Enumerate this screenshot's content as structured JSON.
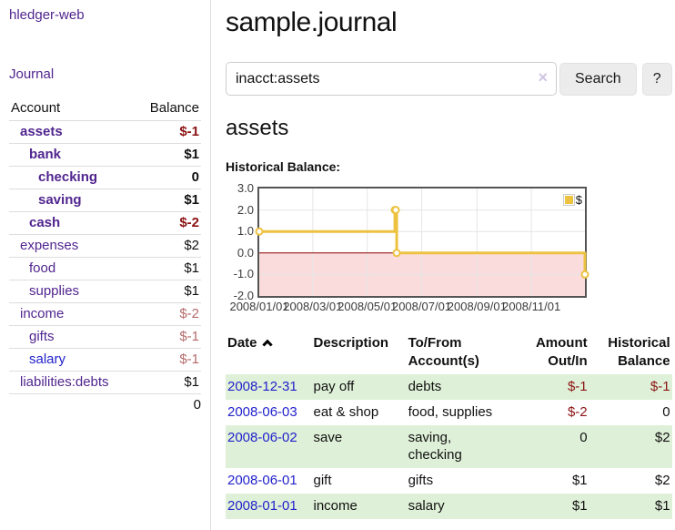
{
  "app": {
    "brand": "hledger-web"
  },
  "theme": {
    "link_purple": "#51258f",
    "link_blue": "#2222cc",
    "negative_strong": "#8b1212",
    "negative_faded": "#b46a6a",
    "row_stripe_green": "#dff0d8",
    "series_gold": "#edc240"
  },
  "sidebar": {
    "journal_link": "Journal",
    "accounts_table": {
      "columns": [
        "Account",
        "Balance"
      ],
      "rows": [
        {
          "name": "assets",
          "balance": "$-1",
          "depth": 1,
          "bold": true,
          "negative": "strong"
        },
        {
          "name": "bank",
          "balance": "$1",
          "depth": 2,
          "bold": true,
          "negative": "none"
        },
        {
          "name": "checking",
          "balance": "0",
          "depth": 3,
          "bold": true,
          "negative": "none"
        },
        {
          "name": "saving",
          "balance": "$1",
          "depth": 3,
          "bold": true,
          "negative": "none"
        },
        {
          "name": "cash",
          "balance": "$-2",
          "depth": 2,
          "bold": true,
          "negative": "strong"
        },
        {
          "name": "expenses",
          "balance": "$2",
          "depth": 1,
          "bold": false,
          "negative": "none"
        },
        {
          "name": "food",
          "balance": "$1",
          "depth": 2,
          "bold": false,
          "negative": "none"
        },
        {
          "name": "supplies",
          "balance": "$1",
          "depth": 2,
          "bold": false,
          "negative": "none"
        },
        {
          "name": "income",
          "balance": "$-2",
          "depth": 1,
          "bold": false,
          "negative": "faded"
        },
        {
          "name": "gifts",
          "balance": "$-1",
          "depth": 2,
          "bold": false,
          "negative": "faded"
        },
        {
          "name": "salary",
          "balance": "$-1",
          "depth": 2,
          "bold": false,
          "negative": "faded",
          "link_color": "blue"
        },
        {
          "name": "liabilities:debts",
          "balance": "$1",
          "depth": 1,
          "bold": false,
          "negative": "none"
        }
      ],
      "total": "0"
    }
  },
  "header": {
    "title": "sample.journal"
  },
  "search": {
    "query": "inacct:assets",
    "clear_icon": "×",
    "button_label": "Search",
    "help_label": "?"
  },
  "account_page": {
    "heading": "assets",
    "chart_label": "Historical Balance:"
  },
  "chart_data": {
    "type": "line",
    "title": "Historical Balance:",
    "style": "step",
    "series": [
      {
        "name": "$",
        "color": "#edc240",
        "points": [
          {
            "date": "2008/01/01",
            "value": 1
          },
          {
            "date": "2008/06/01",
            "value": 2
          },
          {
            "date": "2008/06/02",
            "value": 2
          },
          {
            "date": "2008/06/03",
            "value": 0
          },
          {
            "date": "2008/12/31",
            "value": -1
          }
        ]
      }
    ],
    "xlim": [
      "2008/01/01",
      "2008/12/31"
    ],
    "ylim": [
      -2,
      3
    ],
    "x_ticks": [
      "2008/01/01",
      "2008/03/01",
      "2008/05/01",
      "2008/07/01",
      "2008/09/01",
      "2008/11/01"
    ],
    "y_ticks": [
      "3.0",
      "2.0",
      "1.0",
      "0.0",
      "-1.0",
      "-2.0"
    ],
    "legend": {
      "label": "$",
      "position": "top-right"
    },
    "grid": true,
    "grid_color": "#e6e6e6",
    "zero_line_color": "#8b0000",
    "negative_region_color": "#fbdcdc",
    "border_color": "#545454"
  },
  "register_table": {
    "columns": [
      {
        "label": "Date",
        "sorted": "asc"
      },
      {
        "label": "Description"
      },
      {
        "label": "To/From Account(s)"
      },
      {
        "label": "Amount Out/In"
      },
      {
        "label": "Historical Balance"
      }
    ],
    "rows": [
      {
        "date": "2008-12-31",
        "description": "pay off",
        "accounts": "debts",
        "amount": "$-1",
        "amount_neg": true,
        "balance": "$-1",
        "balance_neg": true
      },
      {
        "date": "2008-06-03",
        "description": "eat & shop",
        "accounts": "food, supplies",
        "amount": "$-2",
        "amount_neg": true,
        "balance": "0",
        "balance_neg": false
      },
      {
        "date": "2008-06-02",
        "description": "save",
        "accounts": "saving, checking",
        "amount": "0",
        "amount_neg": false,
        "balance": "$2",
        "balance_neg": false
      },
      {
        "date": "2008-06-01",
        "description": "gift",
        "accounts": "gifts",
        "amount": "$1",
        "amount_neg": false,
        "balance": "$2",
        "balance_neg": false
      },
      {
        "date": "2008-01-01",
        "description": "income",
        "accounts": "salary",
        "amount": "$1",
        "amount_neg": false,
        "balance": "$1",
        "balance_neg": false
      }
    ]
  }
}
